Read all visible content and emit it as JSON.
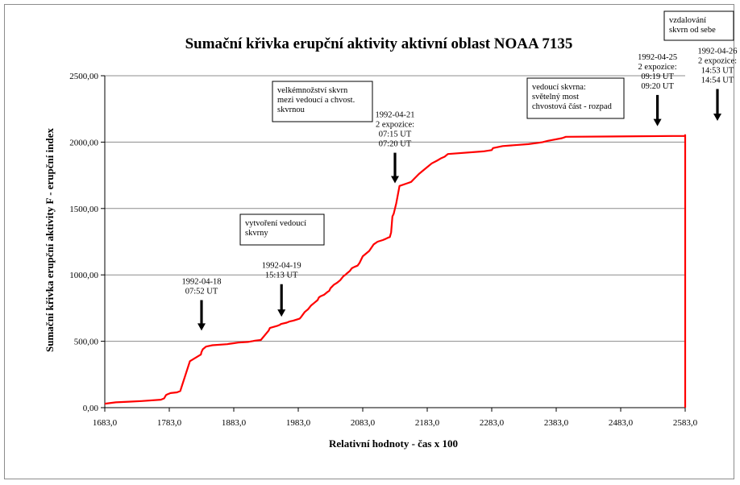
{
  "chart_data": {
    "type": "line",
    "title": "Sumační křivka erupční aktivity aktivní oblast NOAA 7135",
    "xlabel": "Relativní hodnoty - čas x 100",
    "ylabel": "Sumační křivka erupční aktivity F - erupční index",
    "xlim": [
      1683,
      2583
    ],
    "ylim": [
      0,
      2500
    ],
    "x_ticks": [
      "1683,0",
      "1783,0",
      "1883,0",
      "1983,0",
      "2083,0",
      "2183,0",
      "2283,0",
      "2383,0",
      "2483,0",
      "2583,0"
    ],
    "y_ticks": [
      "0,00",
      "500,00",
      "1000,00",
      "1500,00",
      "2000,00",
      "2500,00"
    ],
    "grid": "horizontal",
    "line_color": "#ff0000",
    "series": [
      {
        "x": [
          1683,
          1700,
          1720,
          1740,
          1770,
          1775,
          1778,
          1780,
          1785,
          1795,
          1800,
          1815,
          1832,
          1833,
          1835,
          1840,
          1850,
          1873,
          1875,
          1882,
          1890,
          1905,
          1913,
          1916,
          1925,
          1937,
          1939,
          1950,
          1955,
          1956,
          1965,
          1970,
          1975,
          1985,
          1987,
          1993,
          1998,
          2003,
          2008,
          2013,
          2015,
          2018,
          2023,
          2028,
          2031,
          2033,
          2038,
          2043,
          2048,
          2053,
          2056,
          2058,
          2063,
          2066,
          2070,
          2075,
          2078,
          2083,
          2093,
          2100,
          2106,
          2114,
          2118,
          2122,
          2125,
          2127,
          2129,
          2131,
          2133,
          2135,
          2140,
          2152,
          2158,
          2162,
          2170,
          2180,
          2190,
          2198,
          2205,
          2210,
          2215,
          2270,
          2283,
          2285,
          2300,
          2340,
          2356,
          2362,
          2370,
          2392,
          2398,
          2582,
          2583
        ],
        "y": [
          30,
          40,
          45,
          50,
          60,
          70,
          95,
          100,
          110,
          115,
          125,
          350,
          400,
          420,
          440,
          460,
          470,
          478,
          480,
          485,
          490,
          495,
          502,
          505,
          510,
          580,
          600,
          615,
          625,
          630,
          640,
          650,
          655,
          670,
          680,
          720,
          740,
          770,
          790,
          810,
          830,
          840,
          850,
          870,
          880,
          900,
          925,
          940,
          960,
          990,
          1000,
          1010,
          1030,
          1050,
          1060,
          1070,
          1090,
          1140,
          1180,
          1230,
          1250,
          1262,
          1270,
          1280,
          1285,
          1320,
          1440,
          1460,
          1500,
          1540,
          1670,
          1690,
          1700,
          1720,
          1760,
          1800,
          1840,
          1860,
          1880,
          1890,
          1910,
          1930,
          1940,
          1955,
          1970,
          1985,
          1995,
          2000,
          2010,
          2030,
          2040,
          2047,
          2053
        ]
      }
    ],
    "annotations": [
      {
        "lines": [
          "1992-04-18",
          "07:52 UT"
        ],
        "arrow_x": 1833,
        "arrow_from": 810,
        "arrow_to": 580
      },
      {
        "lines": [
          "1992-04-19",
          "15:13 UT"
        ],
        "arrow_x": 1957,
        "arrow_from": 930,
        "arrow_to": 685
      },
      {
        "lines": [
          "1992-04-21",
          "2 expozice:",
          "07:15 UT",
          "07:20 UT"
        ],
        "arrow_x": 2133,
        "arrow_from": 1920,
        "arrow_to": 1690
      },
      {
        "lines": [
          "1992-04-25",
          "2 expozice:",
          "09:19 UT",
          "09:20 UT"
        ],
        "arrow_x": 2540,
        "arrow_from": 2355,
        "arrow_to": 2120
      },
      {
        "lines": [
          "1992-04-26",
          "2 expozice:",
          "14:53 UT",
          "14:54 UT"
        ],
        "arrow_x": 2633,
        "arrow_from": 2400,
        "arrow_to": 2160
      }
    ],
    "boxes": [
      {
        "lines": [
          "velkémnožství skvrn",
          "mezi vedoucí a chvost.",
          "skvrnou"
        ]
      },
      {
        "lines": [
          "vytvoření vedoucí",
          "skvrny"
        ]
      },
      {
        "lines": [
          "vedoucí skvrna:",
          "světelný most",
          "chvostová část - rozpad"
        ]
      },
      {
        "lines": [
          "vzdalování",
          "skvrn od sebe"
        ]
      }
    ]
  }
}
